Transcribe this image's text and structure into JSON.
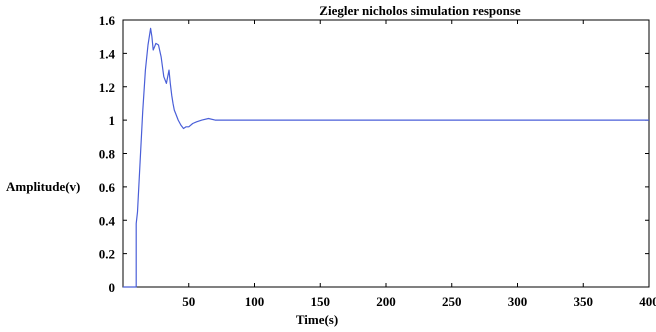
{
  "chart_data": {
    "type": "line",
    "title": "Ziegler nicholos simulation response",
    "xlabel": "Time(s)",
    "ylabel": "Amplitude(v)",
    "xlim": [
      0,
      400
    ],
    "ylim": [
      0,
      1.6
    ],
    "xticks": [
      "50",
      "100",
      "150",
      "200",
      "250",
      "300",
      "350",
      "400"
    ],
    "yticks": [
      "0",
      "0.2",
      "0.4",
      "0.6",
      "0.8",
      "1",
      "1.2",
      "1.4",
      "1.6"
    ],
    "grid": false,
    "line_color": "#4a5fd8",
    "series": [
      {
        "x": [
          0,
          10,
          10,
          11,
          13,
          15,
          17,
          19,
          21,
          22,
          23,
          24,
          25,
          27,
          29,
          31,
          33,
          35,
          36,
          37,
          38,
          39,
          40,
          42,
          44,
          46,
          48,
          50,
          53,
          56,
          60,
          65,
          70,
          80,
          90,
          100,
          120,
          150,
          200,
          250,
          300,
          350,
          400
        ],
        "y": [
          0,
          0,
          0.38,
          0.45,
          0.75,
          1.05,
          1.3,
          1.45,
          1.55,
          1.5,
          1.42,
          1.44,
          1.46,
          1.45,
          1.38,
          1.26,
          1.22,
          1.3,
          1.22,
          1.15,
          1.1,
          1.06,
          1.04,
          1.0,
          0.97,
          0.95,
          0.96,
          0.96,
          0.98,
          0.99,
          1.0,
          1.01,
          1.0,
          1.0,
          1.0,
          1.0,
          1.0,
          1.0,
          1.0,
          1.0,
          1.0,
          1.0,
          1.0
        ]
      }
    ]
  }
}
